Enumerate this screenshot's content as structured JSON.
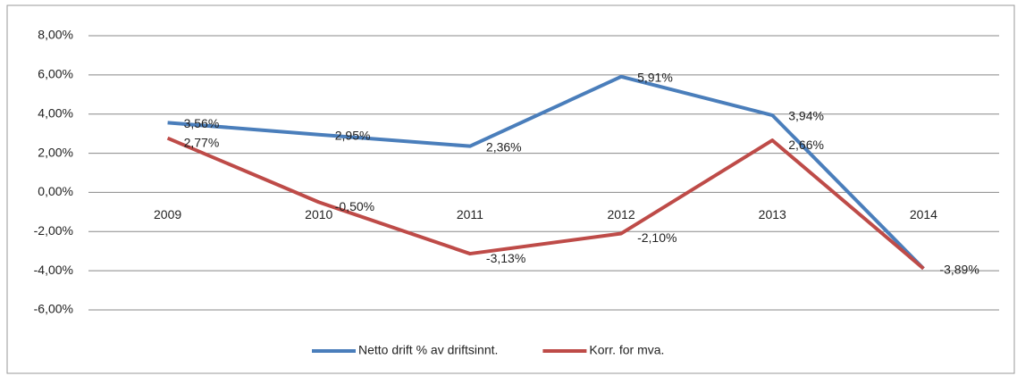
{
  "chart_data": {
    "type": "line",
    "categories": [
      "2009",
      "2010",
      "2011",
      "2012",
      "2013",
      "2014"
    ],
    "series": [
      {
        "name": "Netto drift % av driftsinnt.",
        "color": "#4a7ebb",
        "values": [
          3.56,
          2.95,
          2.36,
          5.91,
          3.94,
          -3.89
        ],
        "value_labels": [
          "3,56%",
          "2,95%",
          "2,36%",
          "5,91%",
          "3,94%",
          "-3,89%"
        ]
      },
      {
        "name": "Korr. for mva.",
        "color": "#be4b48",
        "values": [
          2.77,
          -0.5,
          -3.13,
          -2.1,
          2.66,
          -3.89
        ],
        "value_labels": [
          "2,77%",
          "-0,50%",
          "-3,13%",
          "-2,10%",
          "2,66%",
          null
        ]
      }
    ],
    "ylim": [
      -6,
      8
    ],
    "yticks": [
      {
        "value": 8,
        "label": "8,00%"
      },
      {
        "value": 6,
        "label": "6,00%"
      },
      {
        "value": 4,
        "label": "4,00%"
      },
      {
        "value": 2,
        "label": "2,00%"
      },
      {
        "value": 0,
        "label": "0,00%"
      },
      {
        "value": -2,
        "label": "-2,00%"
      },
      {
        "value": -4,
        "label": "-4,00%"
      },
      {
        "value": -6,
        "label": "-6,00%"
      }
    ],
    "grid": true
  }
}
